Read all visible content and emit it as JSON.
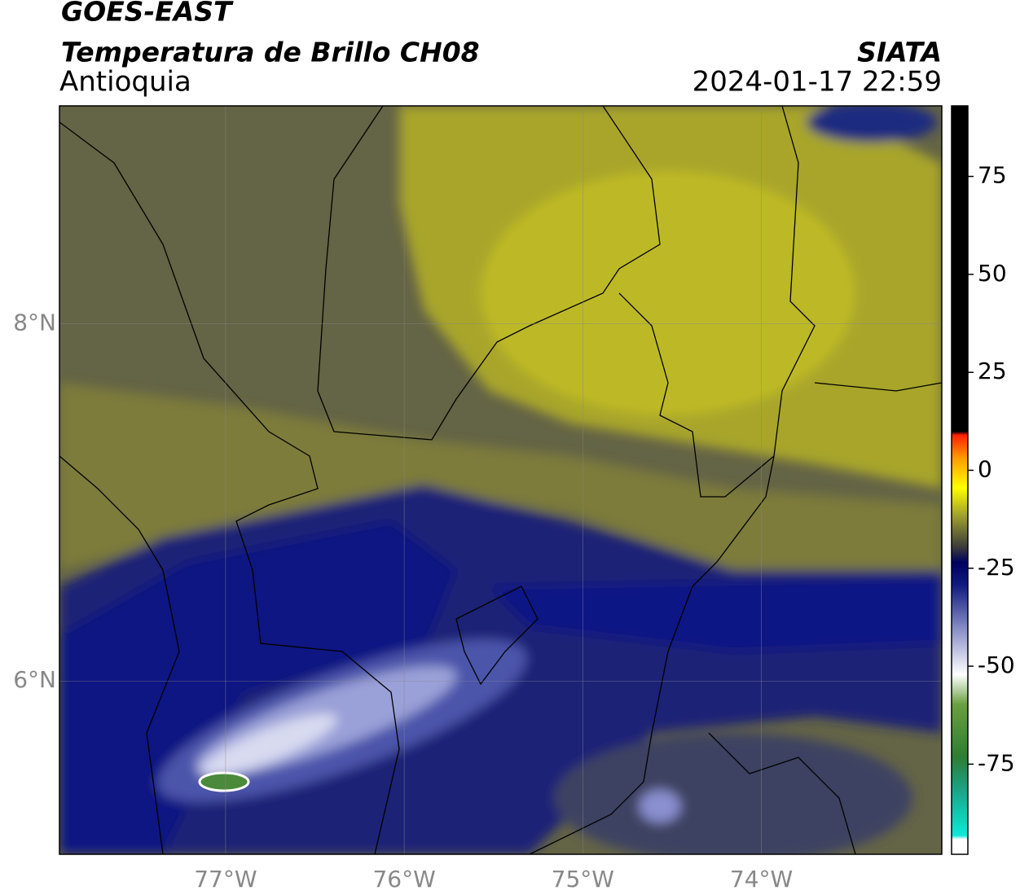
{
  "header": {
    "title": "GOES-EAST",
    "subtitle": "Temperatura de Brillo CH08",
    "region": "Antioquia",
    "source": "SIATA",
    "datetime": "2024-01-17 22:59"
  },
  "map": {
    "xlim": [
      -77.93,
      -72.99
    ],
    "ylim": [
      5.03,
      9.22
    ],
    "xticks": [
      {
        "value": -77,
        "label": "77°W"
      },
      {
        "value": -76,
        "label": "76°W"
      },
      {
        "value": -75,
        "label": "75°W"
      },
      {
        "value": -74,
        "label": "74°W"
      }
    ],
    "yticks": [
      {
        "value": 8,
        "label": "8°N"
      },
      {
        "value": 6,
        "label": "6°N"
      }
    ],
    "grid": true
  },
  "colorbar": {
    "lim": [
      -98,
      93
    ],
    "ticks": [
      75,
      50,
      25,
      0,
      -25,
      -50,
      -75
    ]
  }
}
